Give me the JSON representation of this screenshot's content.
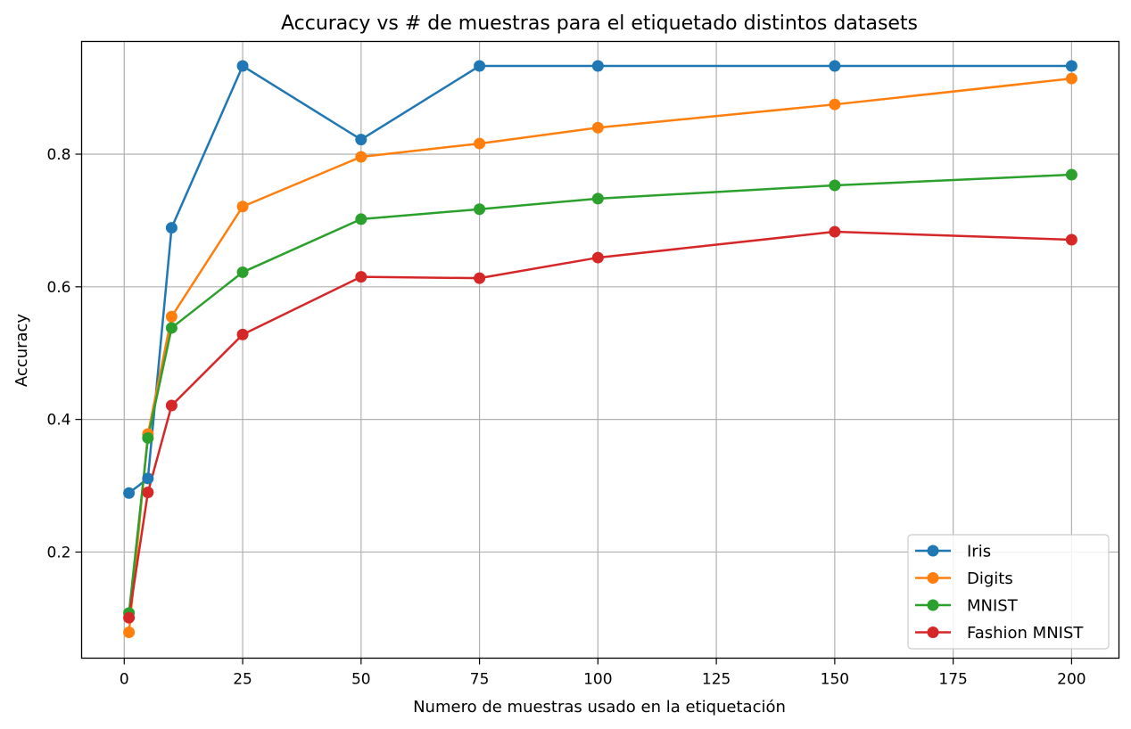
{
  "chart_data": {
    "type": "line",
    "title": "Accuracy vs # de muestras para el etiquetado distintos datasets",
    "xlabel": "Numero de muestras usado en la etiquetación",
    "ylabel": "Accuracy",
    "x": [
      1,
      5,
      10,
      25,
      50,
      75,
      100,
      150,
      200
    ],
    "xlim": [
      -9,
      210
    ],
    "ylim": [
      0.04,
      0.97
    ],
    "xticks": [
      0,
      25,
      50,
      75,
      100,
      125,
      150,
      175,
      200
    ],
    "yticks": [
      0.2,
      0.4,
      0.6,
      0.8
    ],
    "grid": true,
    "legend_position": "lower right",
    "series": [
      {
        "name": "Iris",
        "color": "#1f77b4",
        "values": [
          0.289,
          0.311,
          0.689,
          0.933,
          0.822,
          0.933,
          0.933,
          0.933,
          0.933
        ]
      },
      {
        "name": "Digits",
        "color": "#ff7f0e",
        "values": [
          0.079,
          0.378,
          0.555,
          0.721,
          0.796,
          0.816,
          0.84,
          0.875,
          0.914
        ]
      },
      {
        "name": "MNIST",
        "color": "#2ca02c",
        "values": [
          0.108,
          0.372,
          0.538,
          0.622,
          0.702,
          0.717,
          0.733,
          0.753,
          0.769
        ]
      },
      {
        "name": "Fashion MNIST",
        "color": "#d62728",
        "values": [
          0.101,
          0.29,
          0.421,
          0.528,
          0.615,
          0.613,
          0.644,
          0.683,
          0.671
        ]
      }
    ]
  }
}
